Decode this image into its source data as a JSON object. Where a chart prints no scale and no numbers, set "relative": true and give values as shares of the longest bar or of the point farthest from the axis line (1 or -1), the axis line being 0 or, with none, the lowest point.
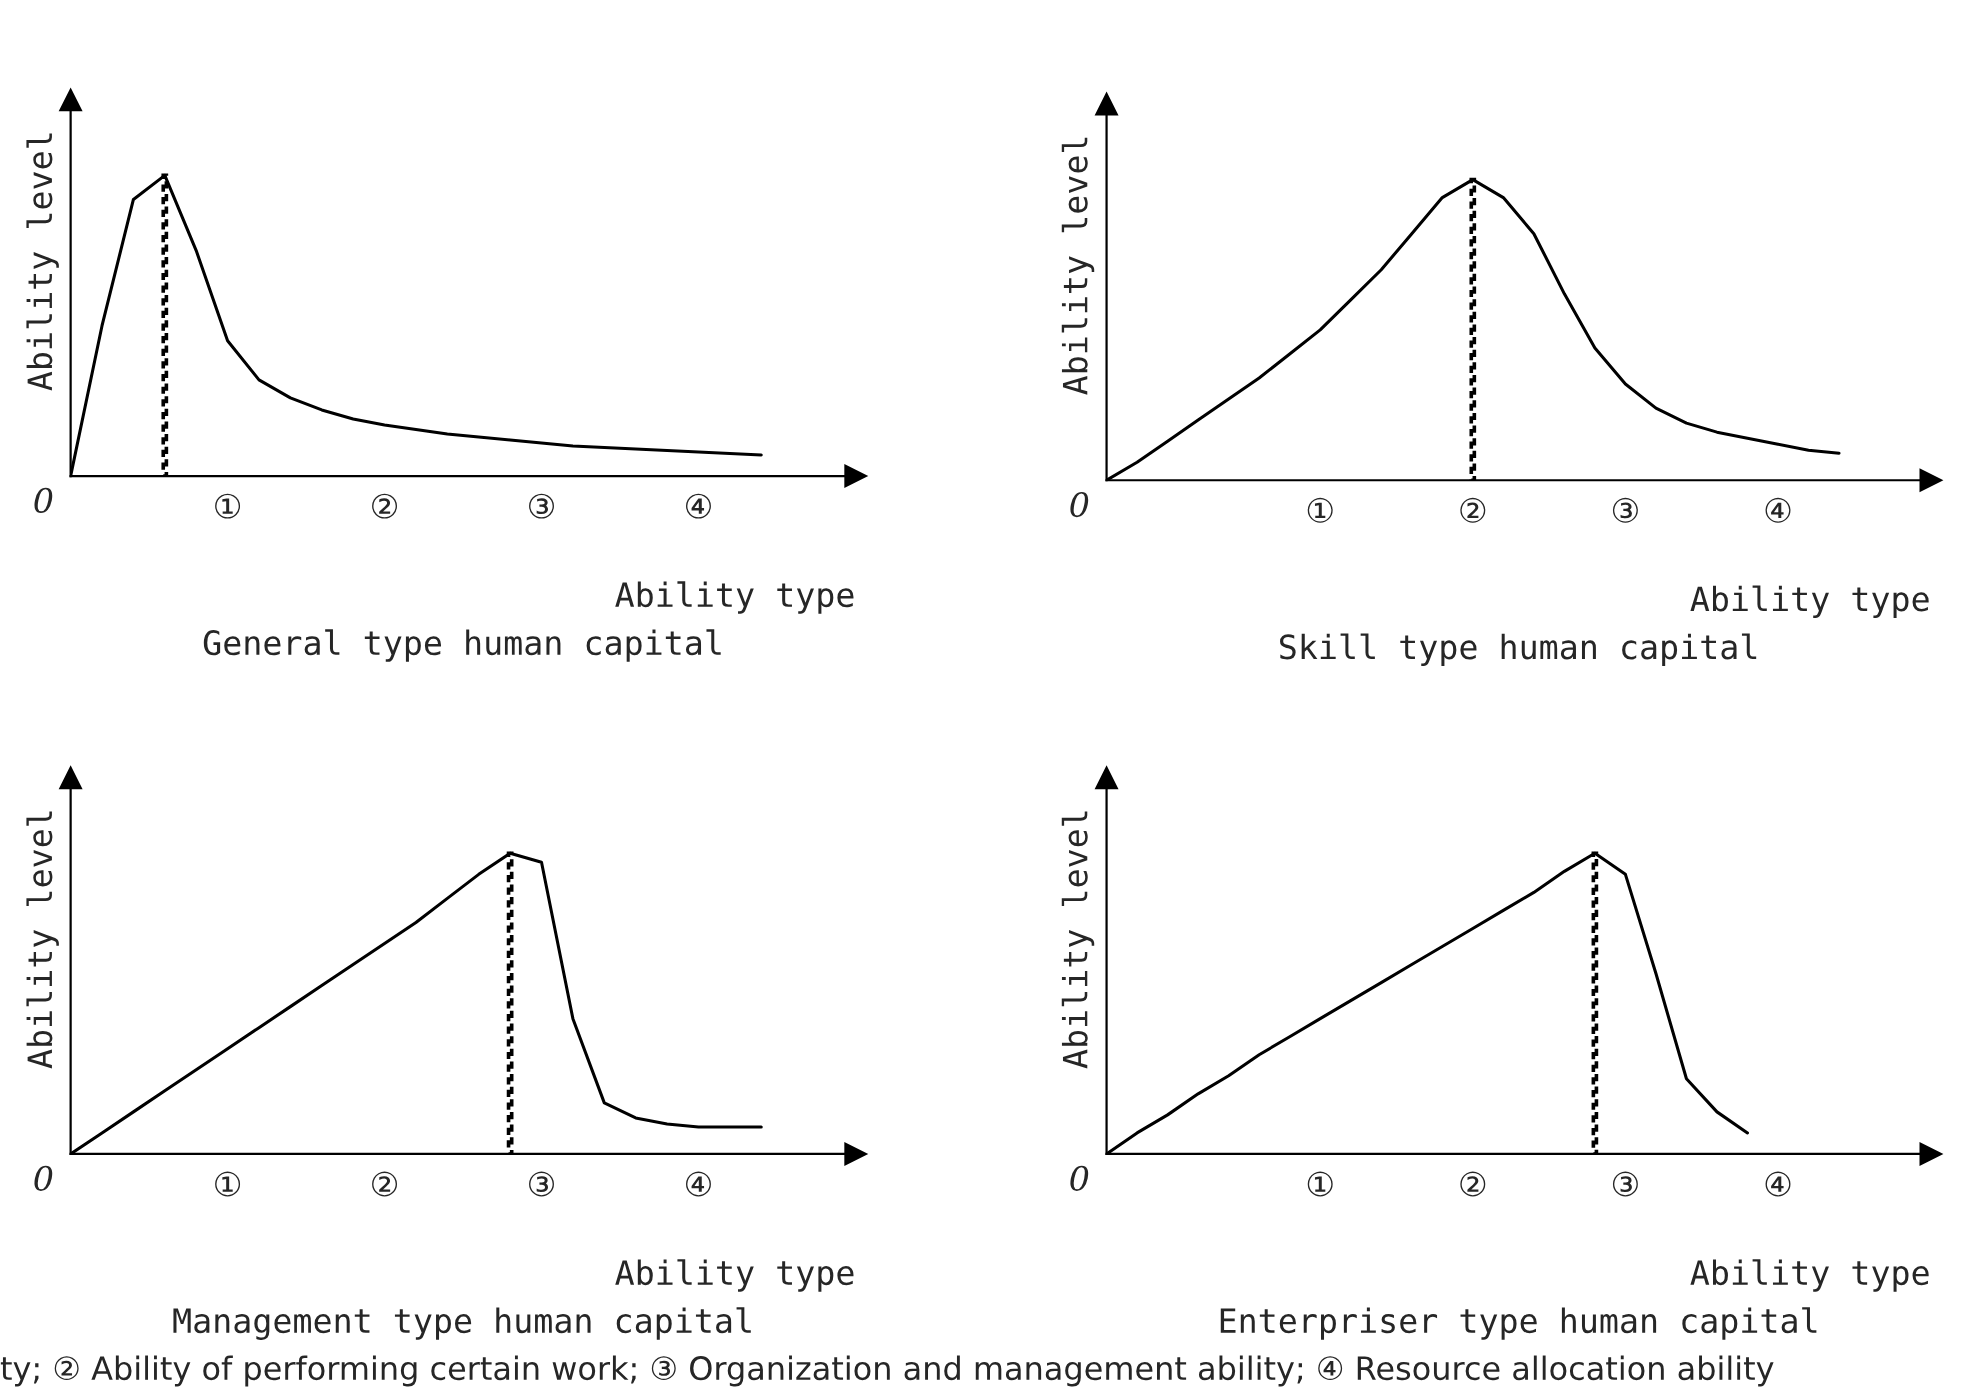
{
  "chart_data": [
    {
      "type": "line",
      "title": "General type human capital",
      "xlabel": "Ability type",
      "ylabel": "Ability level",
      "relative": true,
      "legend": false,
      "categories": [
        null,
        null,
        null,
        null,
        null,
        "①",
        null,
        null,
        null,
        null,
        "②",
        null,
        null,
        null,
        null,
        "③",
        null,
        null,
        null,
        null,
        "④",
        null,
        null
      ],
      "annotations": [
        "0",
        "ty; ② Ability of performing certain work; ③ Organization and management ability; ④ Resource allocation ability"
      ],
      "series": [
        {
          "color": "#000000",
          "line_style": "solid",
          "values": [
            0,
            0.5,
            0.92,
            1,
            0.75,
            0.45,
            0.32,
            0.26,
            0.22,
            0.19,
            0.17,
            0.155,
            0.14,
            0.13,
            0.12,
            0.11,
            0.1,
            0.095,
            0.09,
            0.085,
            0.08,
            0.075,
            0.07
          ]
        },
        {
          "type": "bar",
          "color": "#000000",
          "line_style": "dashed",
          "values": [
            null,
            null,
            null,
            1,
            null,
            null,
            null,
            null,
            null,
            null,
            null,
            null,
            null,
            null,
            null,
            null,
            null,
            null,
            null,
            null,
            null,
            null,
            null
          ]
        }
      ]
    },
    {
      "type": "line",
      "title": "Skill type human capital",
      "xlabel": "Ability type",
      "ylabel": "Ability level",
      "relative": true,
      "legend": false,
      "categories": [
        null,
        null,
        null,
        null,
        null,
        null,
        null,
        "①",
        null,
        null,
        null,
        null,
        "②",
        null,
        null,
        null,
        null,
        "③",
        null,
        null,
        null,
        null,
        "④",
        null,
        null
      ],
      "annotations": [
        "0"
      ],
      "series": [
        {
          "color": "#000000",
          "line_style": "solid",
          "values": [
            0,
            0.06,
            0.13,
            0.2,
            0.27,
            0.34,
            0.42,
            0.5,
            0.6,
            0.7,
            0.82,
            0.94,
            1,
            0.94,
            0.82,
            0.62,
            0.44,
            0.32,
            0.24,
            0.19,
            0.16,
            0.14,
            0.12,
            0.1,
            0.09
          ]
        },
        {
          "type": "bar",
          "color": "#000000",
          "line_style": "dashed",
          "values": [
            null,
            null,
            null,
            null,
            null,
            null,
            null,
            null,
            null,
            null,
            null,
            null,
            1,
            null,
            null,
            null,
            null,
            null,
            null,
            null,
            null,
            null,
            null,
            null,
            null
          ]
        }
      ]
    },
    {
      "type": "line",
      "title": "Management type human capital",
      "xlabel": "Ability type",
      "ylabel": "Ability level",
      "relative": true,
      "legend": false,
      "categories": [
        null,
        null,
        null,
        null,
        null,
        "①",
        null,
        null,
        null,
        null,
        "②",
        null,
        null,
        null,
        null,
        "③",
        null,
        null,
        null,
        null,
        "④",
        null,
        null
      ],
      "annotations": [
        "0"
      ],
      "series": [
        {
          "color": "#000000",
          "line_style": "solid",
          "values": [
            0,
            0.07,
            0.14,
            0.21,
            0.28,
            0.35,
            0.42,
            0.49,
            0.56,
            0.63,
            0.7,
            0.77,
            0.85,
            0.93,
            1,
            0.97,
            0.45,
            0.17,
            0.12,
            0.1,
            0.09,
            0.09,
            0.09
          ]
        },
        {
          "type": "bar",
          "color": "#000000",
          "line_style": "dashed",
          "values": [
            null,
            null,
            null,
            null,
            null,
            null,
            null,
            null,
            null,
            null,
            null,
            null,
            null,
            null,
            1,
            null,
            null,
            null,
            null,
            null,
            null,
            null,
            null
          ]
        }
      ]
    },
    {
      "type": "line",
      "title": "Enterpriser type human capital",
      "xlabel": "Ability type",
      "ylabel": "Ability level",
      "relative": true,
      "legend": false,
      "categories": [
        null,
        null,
        null,
        null,
        null,
        null,
        null,
        "①",
        null,
        null,
        null,
        null,
        "②",
        null,
        null,
        null,
        null,
        "③",
        null,
        null,
        null,
        null,
        "④",
        null,
        null
      ],
      "annotations": [
        "0"
      ],
      "series": [
        {
          "color": "#000000",
          "line_style": "solid",
          "values": [
            0,
            0.07,
            0.13,
            0.2,
            0.26,
            0.33,
            0.39,
            0.45,
            0.51,
            0.57,
            0.63,
            0.69,
            0.75,
            0.81,
            0.87,
            0.94,
            1,
            0.93,
            0.6,
            0.25,
            0.14,
            0.07,
            null,
            null,
            null
          ]
        },
        {
          "type": "bar",
          "color": "#000000",
          "line_style": "dashed",
          "values": [
            null,
            null,
            null,
            null,
            null,
            null,
            null,
            null,
            null,
            null,
            null,
            null,
            null,
            null,
            null,
            null,
            1,
            null,
            null,
            null,
            null,
            null,
            null,
            null,
            null
          ]
        }
      ]
    }
  ]
}
